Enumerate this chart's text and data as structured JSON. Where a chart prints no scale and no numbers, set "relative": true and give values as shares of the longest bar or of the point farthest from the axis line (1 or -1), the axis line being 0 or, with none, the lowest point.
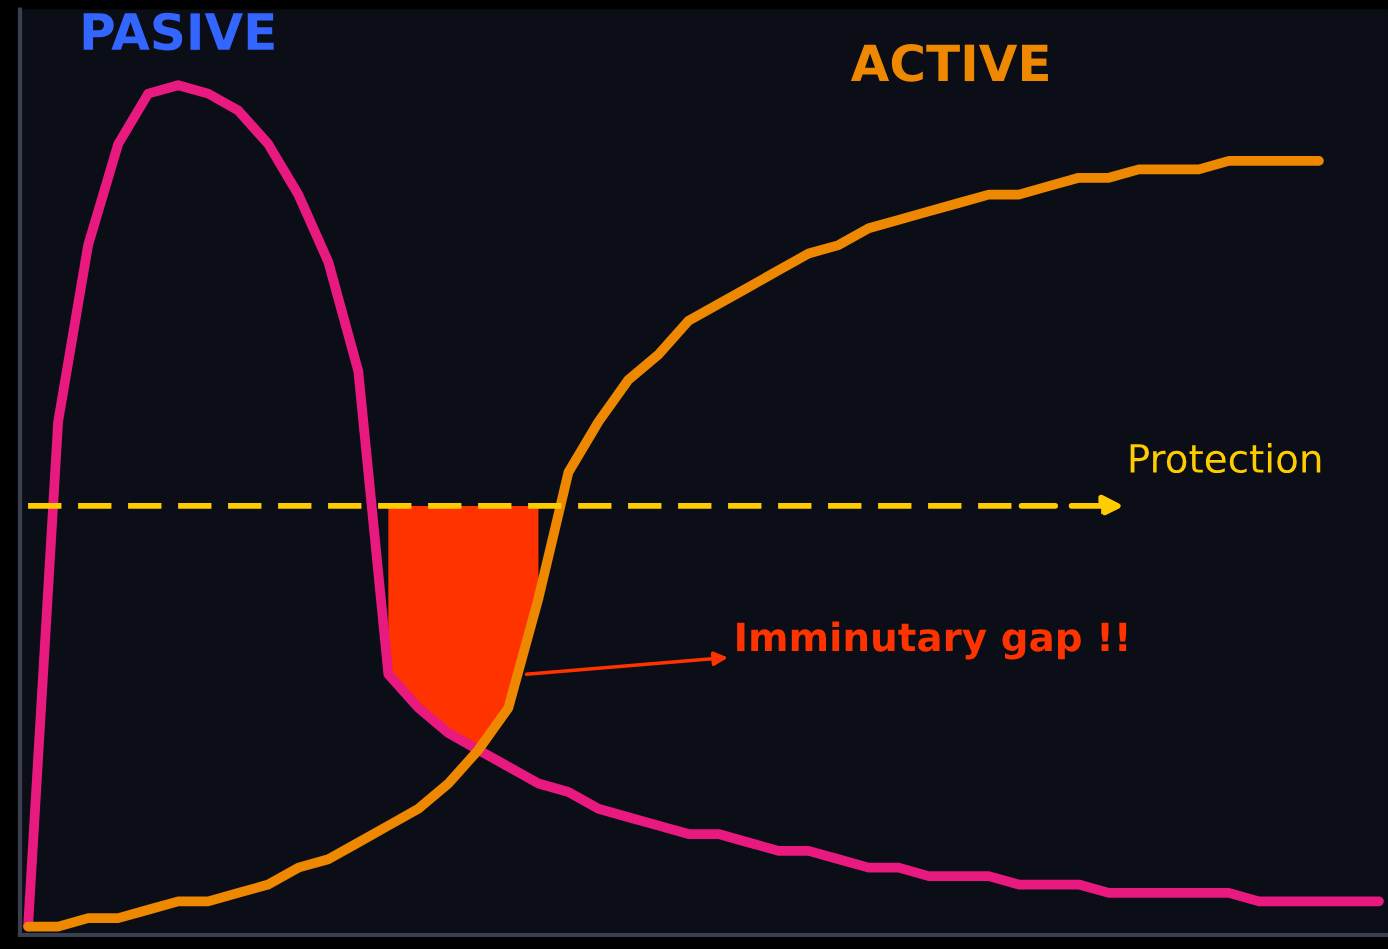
{
  "chart_data": {
    "type": "line",
    "relative": true,
    "categories": [
      null,
      null,
      null,
      null,
      null,
      null,
      null,
      null,
      null,
      null,
      null,
      null,
      null,
      null,
      null,
      null,
      null,
      null,
      null,
      null,
      null,
      null,
      null,
      null,
      null,
      null,
      null,
      null,
      null,
      null,
      null,
      null,
      null,
      null,
      null,
      null,
      null,
      null,
      null,
      null,
      null,
      null,
      null,
      null,
      null,
      null
    ],
    "series": [
      {
        "name": "PASIVE",
        "color": "#e8197f",
        "values": [
          0,
          0.6,
          0.81,
          0.93,
          0.99,
          1.0,
          0.99,
          0.97,
          0.93,
          0.87,
          0.79,
          0.66,
          0.3,
          0.26,
          0.23,
          0.21,
          0.19,
          0.17,
          0.16,
          0.14,
          0.13,
          0.12,
          0.11,
          0.11,
          0.1,
          0.09,
          0.09,
          0.08,
          0.07,
          0.07,
          0.06,
          0.06,
          0.06,
          0.05,
          0.05,
          0.05,
          0.04,
          0.04,
          0.04,
          0.04,
          0.04,
          0.03,
          0.03,
          0.03,
          0.03,
          0.03
        ]
      },
      {
        "name": "ACTIVE",
        "color": "#ee8800",
        "values": [
          0,
          0.0,
          0.01,
          0.01,
          0.02,
          0.03,
          0.03,
          0.04,
          0.05,
          0.07,
          0.08,
          0.1,
          0.12,
          0.14,
          0.17,
          0.21,
          0.26,
          0.39,
          0.54,
          0.6,
          0.65,
          0.68,
          0.72,
          0.74,
          0.76,
          0.78,
          0.8,
          0.81,
          0.83,
          0.84,
          0.85,
          0.86,
          0.87,
          0.87,
          0.88,
          0.89,
          0.89,
          0.9,
          0.9,
          0.9,
          0.91,
          0.91,
          0.91,
          0.91,
          null,
          null
        ]
      },
      {
        "type": "area",
        "color": "#ff3300",
        "values": [
          null,
          null,
          null,
          null,
          null,
          null,
          null,
          null,
          null,
          null,
          null,
          null,
          0.5,
          0.5,
          0.5,
          0.5,
          0.5,
          0.5,
          null,
          null,
          null,
          null,
          null,
          null,
          null,
          null,
          null,
          null,
          null,
          null,
          null,
          null,
          null,
          null,
          null,
          null,
          null,
          null,
          null,
          null,
          null,
          null,
          null,
          null,
          null,
          null
        ]
      }
    ],
    "ref_lines": [
      {
        "axis": "y",
        "value": 0.5,
        "label": "Protection",
        "color": "#ffcc00",
        "line_style": "dashed"
      }
    ],
    "annotations": [
      "Imminutary gap !!"
    ],
    "grid": false,
    "legend": false
  }
}
